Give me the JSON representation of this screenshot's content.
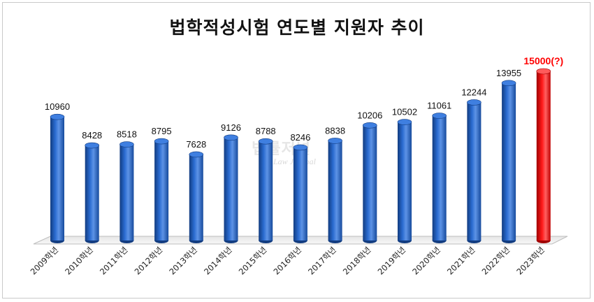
{
  "chart_data": {
    "type": "bar",
    "title": "법학적성시험 연도별 지원자 추이",
    "categories": [
      "2009학년",
      "2010학년",
      "2011학년",
      "2012학년",
      "2013학년",
      "2014학년",
      "2015학년",
      "2016학년",
      "2017학년",
      "2018학년",
      "2019학년",
      "2020학년",
      "2021학년",
      "2022학년",
      "2023학년"
    ],
    "series": [
      {
        "values": [
          10960,
          8428,
          8518,
          8795,
          7628,
          9126,
          8788,
          8246,
          8838,
          10206,
          10502,
          11061,
          12244,
          13955,
          15000
        ]
      }
    ],
    "value_labels": [
      "10960",
      "8428",
      "8518",
      "8795",
      "7628",
      "9126",
      "8788",
      "8246",
      "8838",
      "10206",
      "10502",
      "11061",
      "12244",
      "13955",
      "15000(?)"
    ],
    "highlight_index": 14,
    "ylim": [
      0,
      16000
    ],
    "grid": false,
    "legend": "none",
    "colors": {
      "bar": "#1f5fbf",
      "bar_dark": "#123c80",
      "bar_light": "#5d93e6",
      "highlight": "#ff1010",
      "highlight_dark": "#a00000",
      "highlight_label": "#ff0000"
    }
  },
  "watermark": {
    "line1": "법률저널",
    "line2": "The Law Journal"
  }
}
